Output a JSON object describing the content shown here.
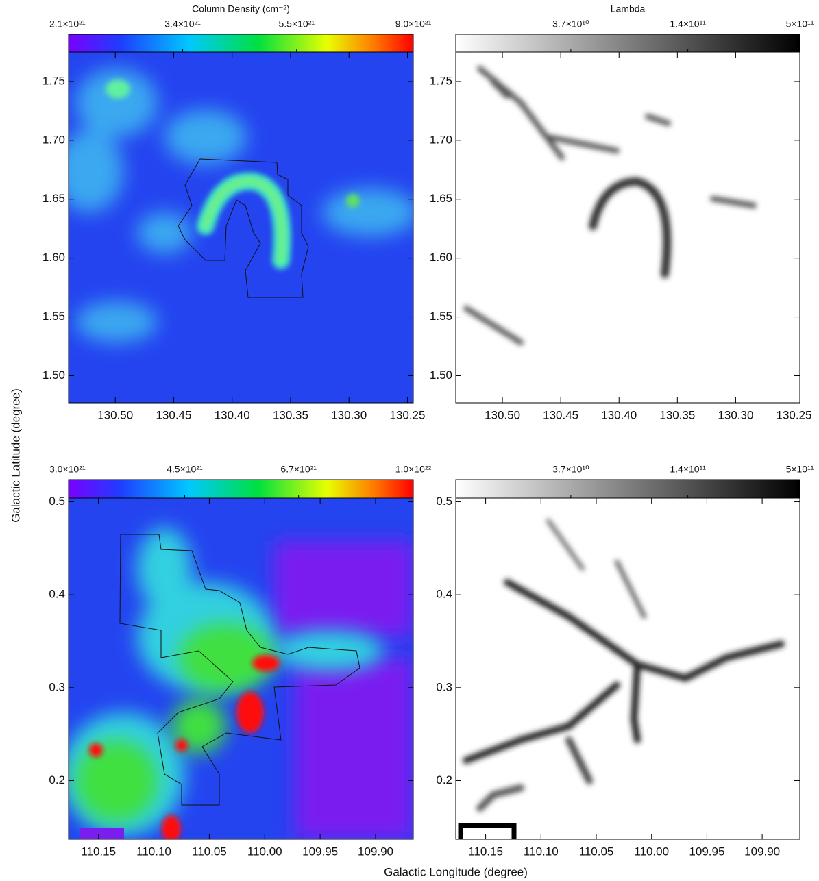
{
  "x_label": "Galactic Longitude (degree)",
  "y_label": "Galactic Latitude (degree)",
  "chart_data": [
    {
      "type": "heatmap",
      "colormap": "rainbow",
      "colorbar_title": "Column Density (cm⁻²)",
      "log_scale": true,
      "clim": [
        2.1e+21,
        9e+21
      ],
      "cticks": [
        {
          "value": 2.1e+21,
          "label": "2.1×10²¹"
        },
        {
          "value": 3.4e+21,
          "label": "3.4×10²¹"
        },
        {
          "value": 5.5e+21,
          "label": "5.5×10²¹"
        },
        {
          "value": 9e+21,
          "label": "9.0×10²¹"
        }
      ],
      "xlim": [
        130.54,
        130.245
      ],
      "xticks": [
        {
          "value": 130.5,
          "label": "130.50"
        },
        {
          "value": 130.45,
          "label": "130.45"
        },
        {
          "value": 130.4,
          "label": "130.40"
        },
        {
          "value": 130.35,
          "label": "130.35"
        },
        {
          "value": 130.3,
          "label": "130.30"
        },
        {
          "value": 130.25,
          "label": "130.25"
        }
      ],
      "ylim": [
        1.477,
        1.775
      ],
      "yticks": [
        {
          "value": 1.5,
          "label": "1.50"
        },
        1.55,
        {
          "value": 1.6,
          "label": "1.60"
        },
        1.65,
        {
          "value": 1.7,
          "label": "1.70"
        },
        1.75
      ]
    },
    {
      "type": "heatmap",
      "colormap": "gray",
      "colorbar_title": "Lambda",
      "log_scale": true,
      "clim": [
        10000000000.0,
        500000000000.0
      ],
      "cticks": [
        {
          "value": 37000000000.0,
          "label": "3.7×10¹⁰"
        },
        {
          "value": 140000000000.0,
          "label": "1.4×10¹¹"
        },
        {
          "value": 500000000000.0,
          "label": "5×10¹¹"
        }
      ],
      "xlim": [
        130.54,
        130.245
      ],
      "xticks": [
        {
          "value": 130.5,
          "label": "130.50"
        },
        {
          "value": 130.45,
          "label": "130.45"
        },
        {
          "value": 130.4,
          "label": "130.40"
        },
        {
          "value": 130.35,
          "label": "130.35"
        },
        {
          "value": 130.3,
          "label": "130.30"
        },
        {
          "value": 130.25,
          "label": "130.25"
        }
      ],
      "ylim": [
        1.477,
        1.775
      ],
      "yticks": [
        {
          "value": 1.5,
          "label": "1.50"
        },
        1.55,
        {
          "value": 1.6,
          "label": "1.60"
        },
        1.65,
        {
          "value": 1.7,
          "label": "1.70"
        },
        1.75
      ]
    },
    {
      "type": "heatmap",
      "colormap": "rainbow",
      "log_scale": true,
      "clim": [
        3e+21,
        1e+22
      ],
      "cticks": [
        {
          "value": 3e+21,
          "label": "3.0×10²¹"
        },
        {
          "value": 4.5e+21,
          "label": "4.5×10²¹"
        },
        {
          "value": 6.7e+21,
          "label": "6.7×10²¹"
        },
        {
          "value": 1e+22,
          "label": "1.0×10²²"
        }
      ],
      "xlim": [
        110.177,
        109.866
      ],
      "xticks": [
        110.15,
        {
          "value": 110.1,
          "label": "110.10"
        },
        110.05,
        {
          "value": 110.0,
          "label": "110.00"
        },
        109.95,
        {
          "value": 109.9,
          "label": "109.90"
        }
      ],
      "ylim": [
        0.137,
        0.504
      ],
      "yticks": [
        0.2,
        0.3,
        0.4,
        0.5
      ]
    },
    {
      "type": "heatmap",
      "colormap": "gray",
      "log_scale": true,
      "clim": [
        10000000000.0,
        500000000000.0
      ],
      "cticks": [
        {
          "value": 37000000000.0,
          "label": "3.7×10¹⁰"
        },
        {
          "value": 140000000000.0,
          "label": "1.4×10¹¹"
        },
        {
          "value": 500000000000.0,
          "label": "5×10¹¹"
        }
      ],
      "xlim": [
        110.177,
        109.866
      ],
      "xticks": [
        110.15,
        {
          "value": 110.1,
          "label": "110.10"
        },
        110.05,
        {
          "value": 110.0,
          "label": "110.00"
        },
        109.95,
        {
          "value": 109.9,
          "label": "109.90"
        }
      ],
      "ylim": [
        0.137,
        0.504
      ],
      "yticks": [
        0.2,
        0.3,
        0.4,
        0.5
      ]
    }
  ]
}
